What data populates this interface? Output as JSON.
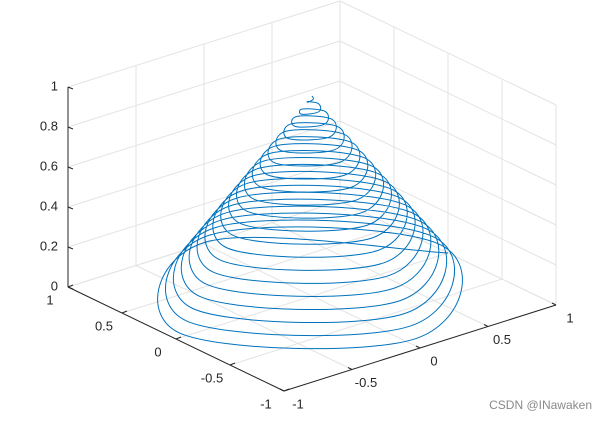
{
  "chart_data": {
    "type": "line3d",
    "color": "#0072bd",
    "grid": true,
    "xlim": [
      -1,
      1
    ],
    "ylim": [
      -1,
      1
    ],
    "zlim": [
      0,
      1
    ],
    "xticks": [
      -1,
      -0.5,
      0,
      0.5,
      1
    ],
    "yticks": [
      -1,
      -0.5,
      0,
      0.5,
      1
    ],
    "zticks": [
      0,
      0.2,
      0.4,
      0.6,
      0.8,
      1
    ],
    "x": [
      1,
      0,
      -0.975,
      0,
      0.95,
      0,
      -0.925,
      0,
      0.9,
      0,
      -0.875,
      0,
      0.85,
      0,
      -0.825,
      0,
      0.8,
      0,
      -0.775,
      0,
      0.75,
      0,
      -0.725,
      0,
      0.7,
      0,
      -0.675,
      0,
      0.65,
      0,
      -0.625,
      0,
      0.6,
      0,
      -0.575,
      0,
      0.55,
      0,
      -0.525,
      0,
      0.5,
      0,
      -0.475,
      0,
      0.45,
      0,
      -0.425,
      0,
      0.4,
      0,
      -0.375,
      0,
      0.35,
      0,
      -0.325,
      0,
      0.3,
      0,
      -0.275,
      0,
      0.25,
      0,
      -0.225,
      0,
      0.2,
      0,
      -0.175,
      0,
      0.15,
      0,
      -0.125,
      0,
      0.1,
      0,
      -0.075,
      0,
      0.05,
      0,
      -0.025,
      0,
      0
    ],
    "y": [
      0,
      0.9875,
      0,
      -0.9625,
      0,
      0.9375,
      0,
      -0.9125,
      0,
      0.8875,
      0,
      -0.8625,
      0,
      0.8375,
      0,
      -0.8125,
      0,
      0.7875,
      0,
      -0.7625,
      0,
      0.7375,
      0,
      -0.7125,
      0,
      0.6875,
      0,
      -0.6625,
      0,
      0.6375,
      0,
      -0.6125,
      0,
      0.5875,
      0,
      -0.5625,
      0,
      0.5375,
      0,
      -0.5125,
      0,
      0.4875,
      0,
      -0.4625,
      0,
      0.4375,
      0,
      -0.4125,
      0,
      0.3875,
      0,
      -0.3625,
      0,
      0.3375,
      0,
      -0.3125,
      0,
      0.2875,
      0,
      -0.2625,
      0,
      0.2375,
      0,
      -0.2125,
      0,
      0.1875,
      0,
      -0.1625,
      0,
      0.1375,
      0,
      -0.1125,
      0,
      0.0875,
      0,
      -0.0625,
      0,
      0.0375,
      0,
      -0.0125,
      0
    ],
    "z": [
      0,
      0.0125,
      0.025,
      0.0375,
      0.05,
      0.0625,
      0.075,
      0.0875,
      0.1,
      0.1125,
      0.125,
      0.1375,
      0.15,
      0.1625,
      0.175,
      0.1875,
      0.2,
      0.2125,
      0.225,
      0.2375,
      0.25,
      0.2625,
      0.275,
      0.2875,
      0.3,
      0.3125,
      0.325,
      0.3375,
      0.35,
      0.3625,
      0.375,
      0.3875,
      0.4,
      0.4125,
      0.425,
      0.4375,
      0.45,
      0.4625,
      0.475,
      0.4875,
      0.5,
      0.5125,
      0.525,
      0.5375,
      0.55,
      0.5625,
      0.575,
      0.5875,
      0.6,
      0.6125,
      0.625,
      0.6375,
      0.65,
      0.6625,
      0.675,
      0.6875,
      0.7,
      0.7125,
      0.725,
      0.7375,
      0.75,
      0.7625,
      0.775,
      0.7875,
      0.8,
      0.8125,
      0.825,
      0.8375,
      0.85,
      0.8625,
      0.875,
      0.8875,
      0.9,
      0.9125,
      0.925,
      0.9375,
      0.95,
      0.9625,
      0.975,
      0.9875,
      1
    ]
  },
  "watermark": "CSDN @INawaken"
}
